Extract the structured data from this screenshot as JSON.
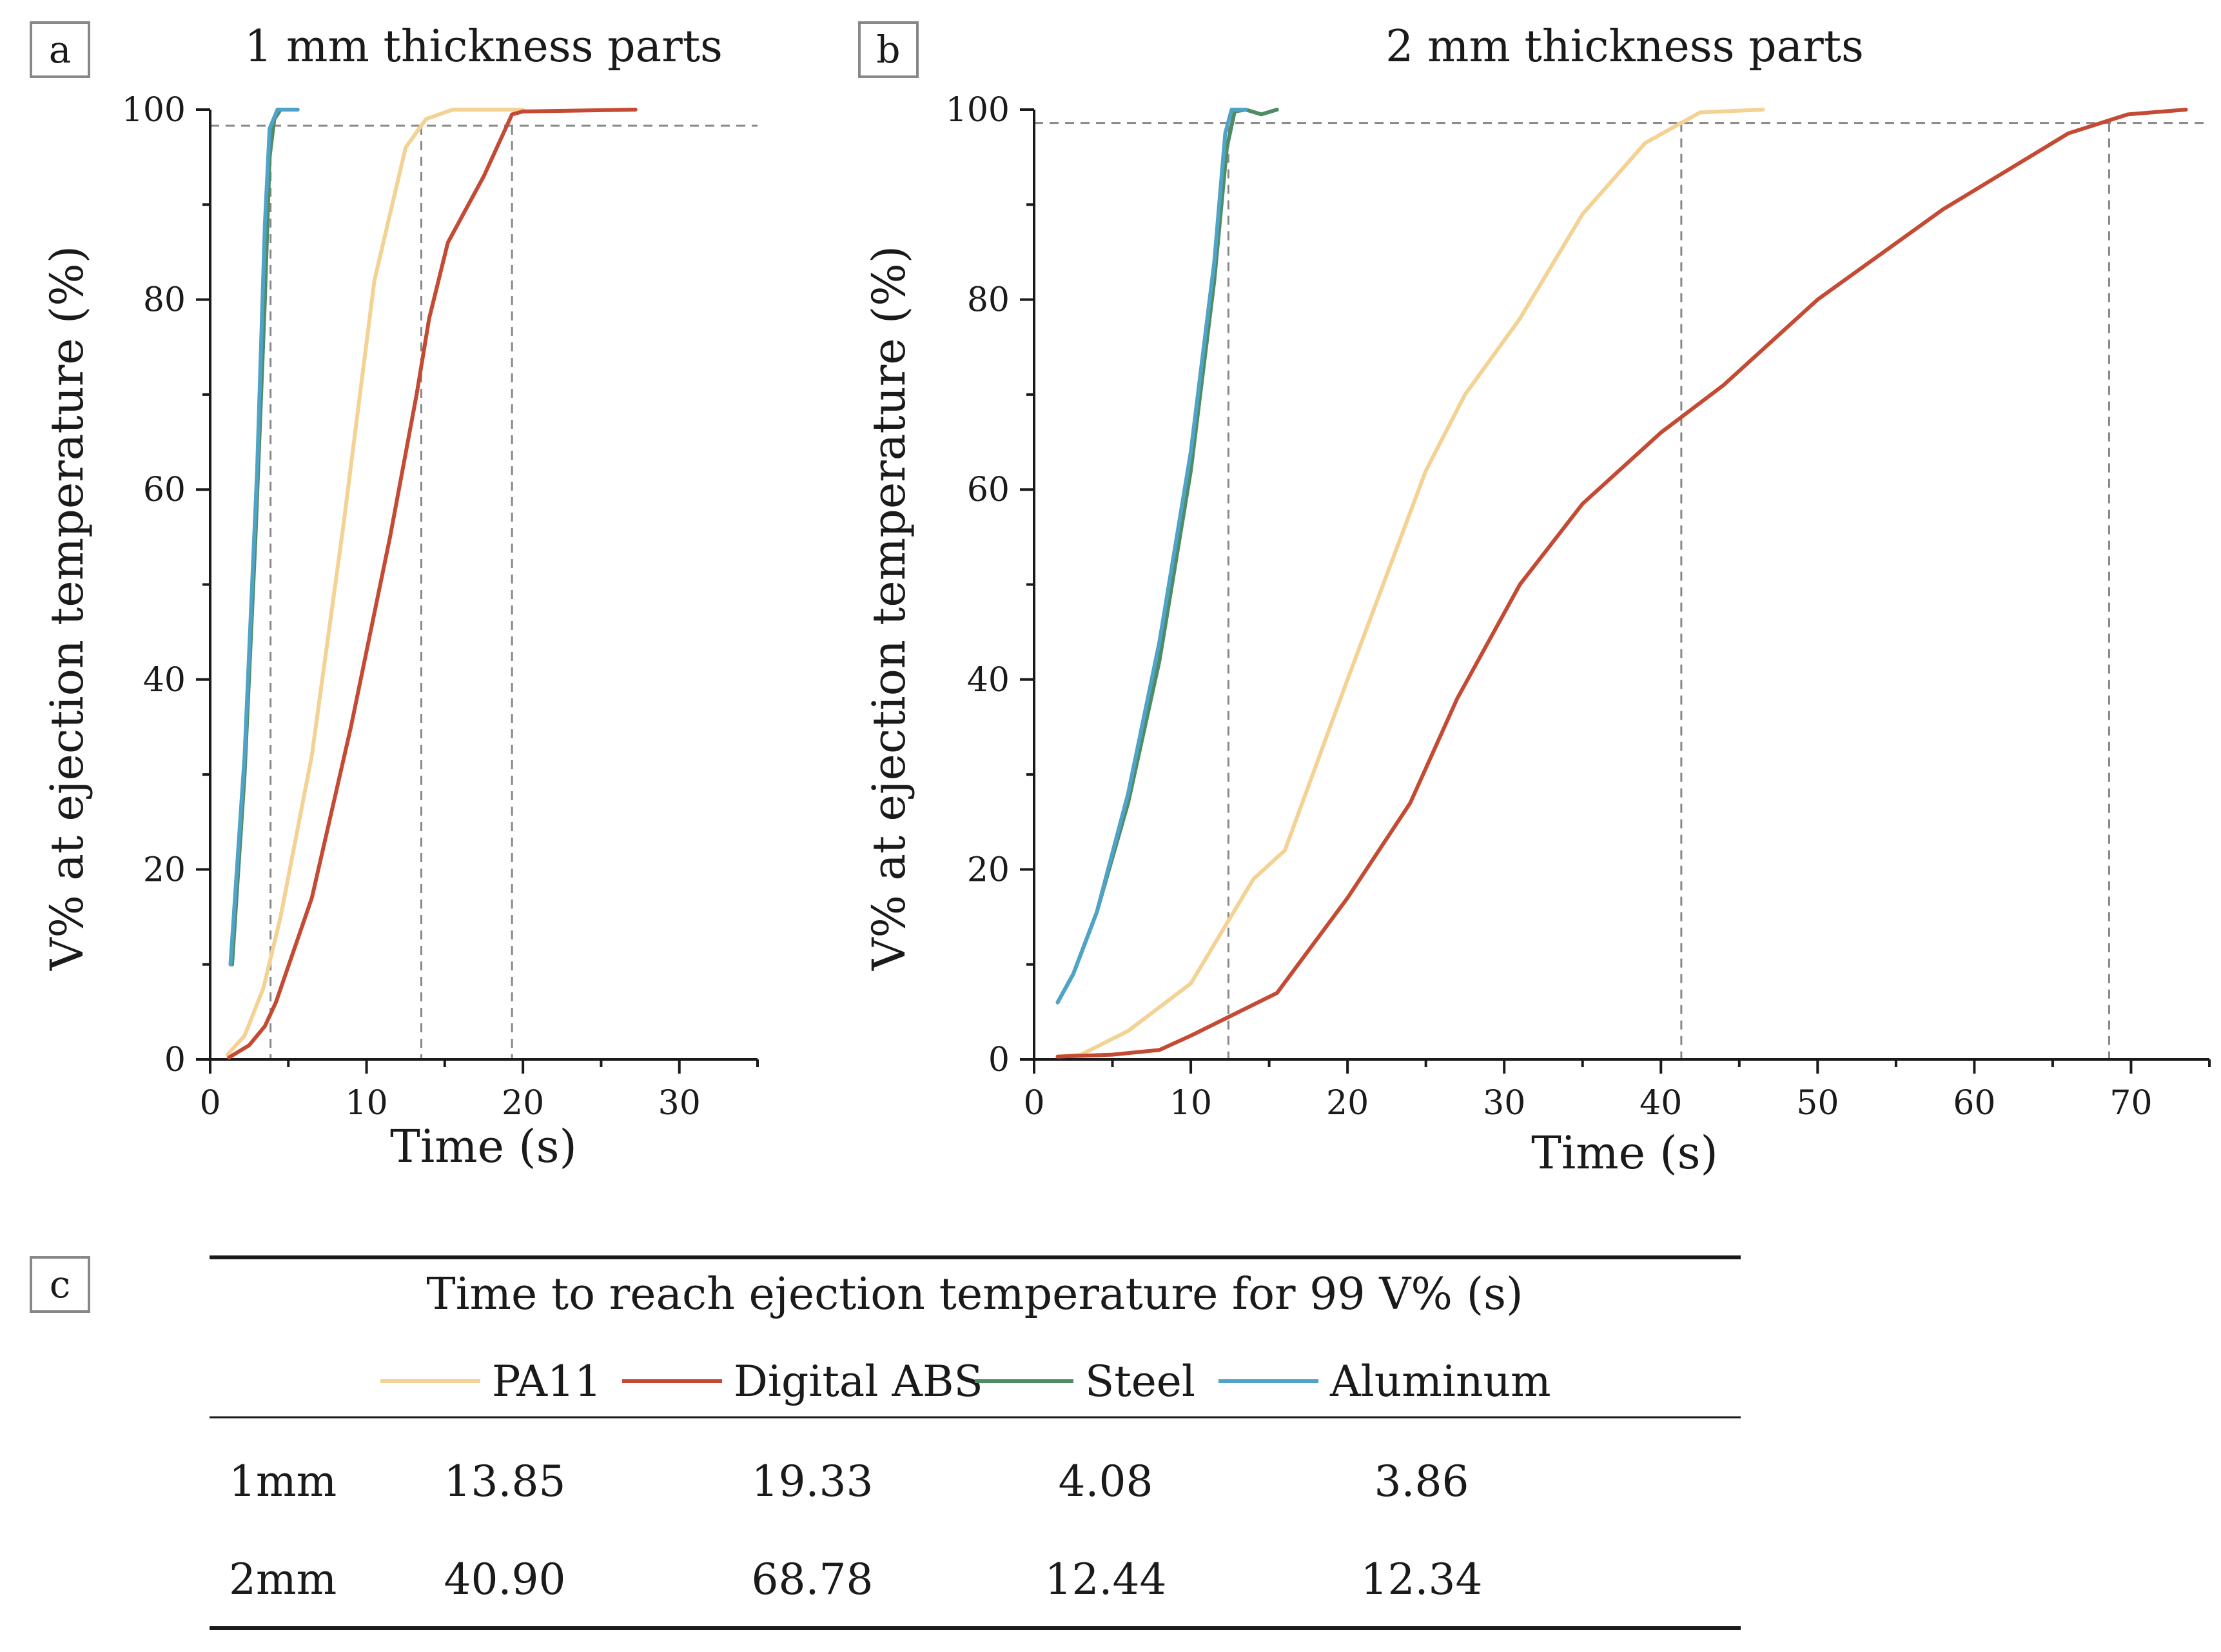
{
  "panels": {
    "a": "a",
    "b": "b",
    "c": "c"
  },
  "colors": {
    "pa11": "#f3d293",
    "abs": "#c44a33",
    "steel": "#4f8c63",
    "aluminum": "#4ea3c7",
    "guide": "#888888",
    "axis": "#1a1a1a"
  },
  "chart_data": [
    {
      "type": "line",
      "title": "1 mm thickness parts",
      "xlabel": "Time (s)",
      "ylabel": "V% at ejection temperature (%)",
      "xlim": [
        0,
        35
      ],
      "ylim": [
        0,
        100
      ],
      "xticks": [
        0,
        10,
        20,
        30
      ],
      "yticks": [
        0,
        20,
        40,
        60,
        80,
        100
      ],
      "reference_y": 98.3,
      "reference_x": [
        3.86,
        13.5,
        19.3
      ],
      "series": [
        {
          "name": "PA11",
          "color": "#f3d293",
          "x": [
            1.1,
            2.2,
            3.4,
            4.5,
            6.5,
            8.5,
            10.5,
            12.5,
            13.8,
            15.5,
            20.0
          ],
          "y": [
            0.5,
            2.5,
            7.5,
            15.0,
            32.0,
            56.0,
            82.0,
            96.0,
            99.0,
            100.0,
            100.0
          ]
        },
        {
          "name": "Digital ABS",
          "color": "#c44a33",
          "x": [
            1.2,
            2.5,
            3.5,
            4.2,
            6.5,
            9.0,
            11.5,
            13.2,
            14.0,
            15.2,
            17.5,
            19.3,
            20.0,
            27.2
          ],
          "y": [
            0.2,
            1.5,
            3.5,
            6.0,
            17.0,
            35.0,
            55.0,
            70.0,
            78.0,
            86.0,
            93.0,
            99.5,
            99.8,
            100.0
          ]
        },
        {
          "name": "Steel",
          "color": "#4f8c63",
          "x": [
            1.4,
            2.2,
            2.9,
            3.5,
            3.8,
            4.1,
            4.5,
            5.0
          ],
          "y": [
            10.0,
            30.0,
            55.0,
            80.0,
            95.0,
            99.0,
            100.0,
            100.0
          ]
        },
        {
          "name": "Aluminum",
          "color": "#4ea3c7",
          "x": [
            1.3,
            2.2,
            3.0,
            3.5,
            3.8,
            4.3,
            5.0,
            5.6
          ],
          "y": [
            10.0,
            32.0,
            62.0,
            88.0,
            98.0,
            100.0,
            100.0,
            100.0
          ]
        }
      ]
    },
    {
      "type": "line",
      "title": "2 mm thickness parts",
      "xlabel": "Time (s)",
      "ylabel": "V% at ejection temperature (%)",
      "xlim": [
        0,
        75
      ],
      "ylim": [
        0,
        100
      ],
      "xticks": [
        0,
        10,
        20,
        30,
        40,
        50,
        60,
        70
      ],
      "yticks": [
        0,
        20,
        40,
        60,
        80,
        100
      ],
      "reference_y": 98.6,
      "reference_x": [
        12.4,
        41.3,
        68.6
      ],
      "series": [
        {
          "name": "PA11",
          "color": "#f3d293",
          "x": [
            1.5,
            3.0,
            6.0,
            10.0,
            14.0,
            16.0,
            20.0,
            25.0,
            27.5,
            31.0,
            35.0,
            39.0,
            42.5,
            46.5
          ],
          "y": [
            0.3,
            0.5,
            3.0,
            8.0,
            19.0,
            22.0,
            40.0,
            62.0,
            70.0,
            78.0,
            89.0,
            96.5,
            99.7,
            100.0
          ]
        },
        {
          "name": "Digital ABS",
          "color": "#c44a33",
          "x": [
            1.5,
            5.0,
            8.0,
            10.0,
            15.5,
            20.0,
            24.0,
            27.0,
            31.0,
            35.0,
            40.0,
            44.0,
            50.0,
            58.0,
            66.0,
            69.8,
            73.5
          ],
          "y": [
            0.3,
            0.5,
            1.0,
            2.5,
            7.0,
            17.0,
            27.0,
            38.0,
            50.0,
            58.5,
            66.0,
            71.0,
            80.0,
            89.5,
            97.5,
            99.5,
            100.0
          ]
        },
        {
          "name": "Steel",
          "color": "#4f8c63",
          "x": [
            1.5,
            2.5,
            4.0,
            6.0,
            8.0,
            10.0,
            11.5,
            12.3,
            12.8,
            13.5,
            14.5,
            15.5
          ],
          "y": [
            6.0,
            9.0,
            15.5,
            27.0,
            42.0,
            62.0,
            82.0,
            96.0,
            99.8,
            100.0,
            99.5,
            100.0
          ]
        },
        {
          "name": "Aluminum",
          "color": "#4ea3c7",
          "x": [
            1.5,
            2.5,
            4.0,
            6.0,
            8.0,
            10.0,
            11.5,
            12.2,
            12.6,
            13.5
          ],
          "y": [
            6.0,
            9.0,
            15.5,
            28.0,
            44.0,
            64.0,
            84.0,
            97.5,
            100.0,
            100.0
          ]
        }
      ]
    },
    {
      "type": "table",
      "title": "Time to reach ejection temperature for 99 V% (s)",
      "columns": [
        "PA11",
        "Digital ABS",
        "Steel",
        "Aluminum"
      ],
      "rows": [
        {
          "label": "1mm",
          "values": [
            "13.85",
            "19.33",
            "4.08",
            "3.86"
          ]
        },
        {
          "label": "2mm",
          "values": [
            "40.90",
            "68.78",
            "12.44",
            "12.34"
          ]
        }
      ]
    }
  ]
}
